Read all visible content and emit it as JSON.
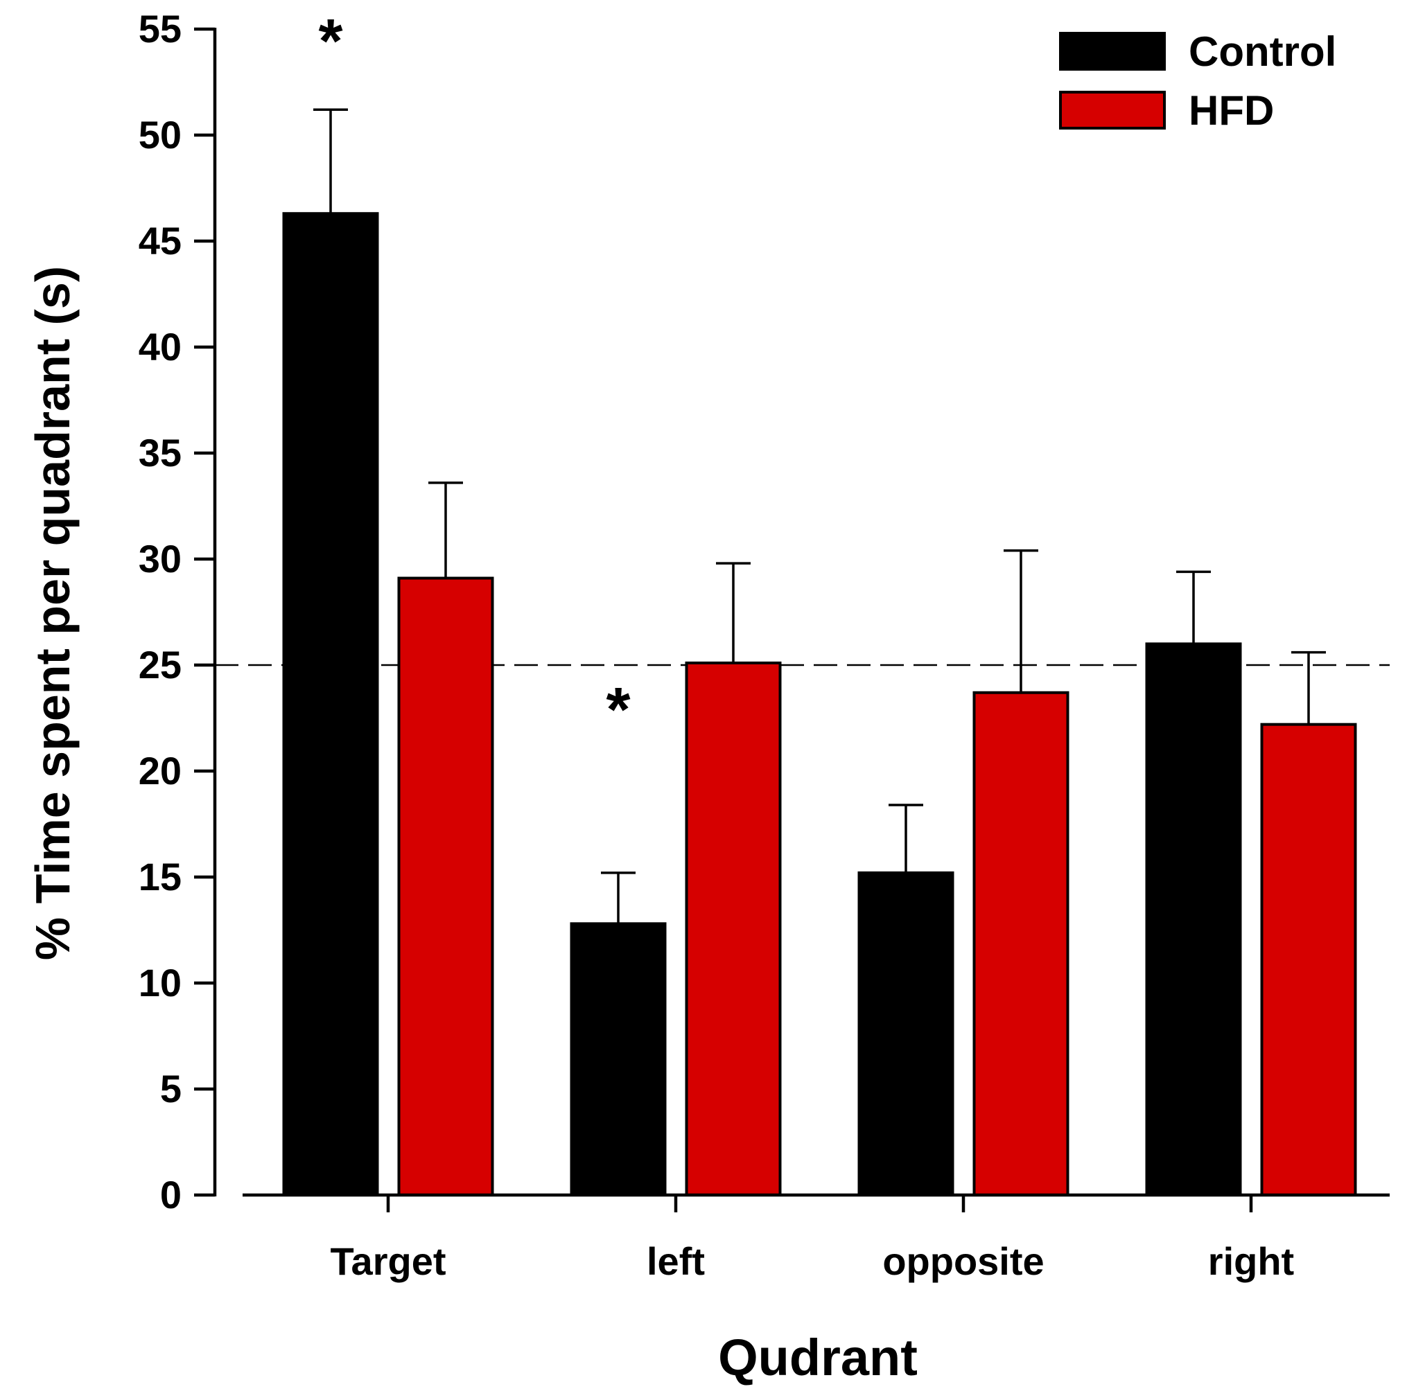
{
  "chart_data": {
    "type": "bar",
    "title": "",
    "xlabel": "Qudrant",
    "ylabel": "% Time spent per quadrant (s)",
    "ylim": [
      0,
      55
    ],
    "yticks": [
      0,
      5,
      10,
      15,
      20,
      25,
      30,
      35,
      40,
      45,
      50,
      55
    ],
    "ytick_labels": [
      "0",
      "5",
      "10",
      "15",
      "20",
      "25",
      "30",
      "35",
      "40",
      "45",
      "50",
      "55"
    ],
    "categories": [
      "Target",
      "left",
      "opposite",
      "right"
    ],
    "series": [
      {
        "name": "Control",
        "color": "#000000",
        "values": [
          46.3,
          12.8,
          15.2,
          26.0
        ],
        "errors": [
          4.9,
          2.4,
          3.2,
          3.4
        ]
      },
      {
        "name": "HFD",
        "color": "#d60000",
        "values": [
          29.1,
          25.1,
          23.7,
          22.2
        ],
        "errors": [
          4.5,
          4.7,
          6.7,
          3.4
        ]
      }
    ],
    "reference_line": {
      "value": 25,
      "style": "dashed"
    },
    "significance": [
      {
        "category": "Target",
        "series": "Control",
        "label": "*"
      },
      {
        "category": "left",
        "series": "Control",
        "label": "*"
      }
    ],
    "legend": {
      "position": "top-right"
    },
    "grid": false
  }
}
